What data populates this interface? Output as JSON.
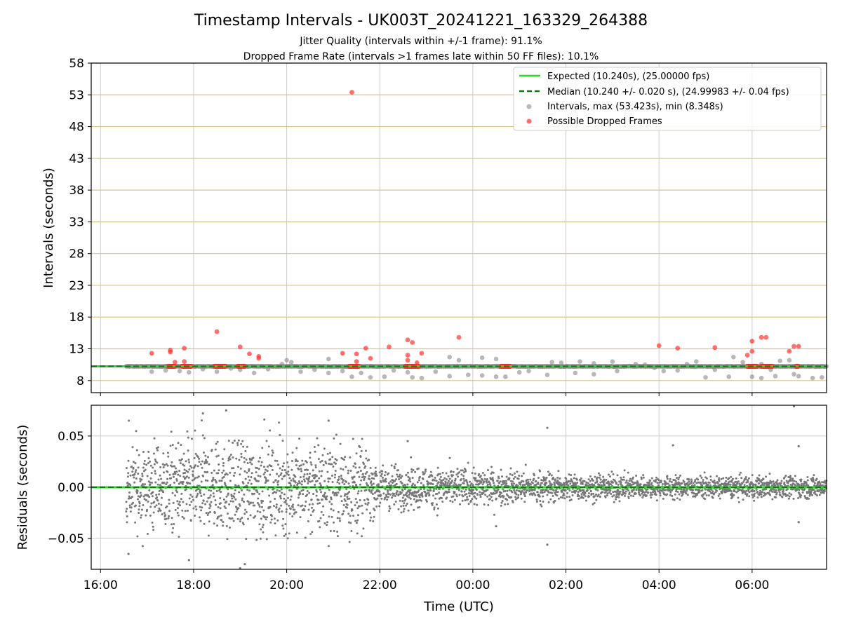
{
  "chart_data": [
    {
      "type": "scatter",
      "title": "Timestamp Intervals - UK003T_20241221_163329_264388",
      "subtitle_1": "Jitter Quality (intervals within +/-1 frame): 91.1%",
      "subtitle_2": "Dropped Frame Rate (intervals >1 frames late within 50 FF files): 10.1%",
      "ylabel": "Intervals (seconds)",
      "ylim": [
        6.1,
        58
      ],
      "yticks": [
        "8",
        "13",
        "18",
        "23",
        "28",
        "33",
        "38",
        "43",
        "48",
        "53",
        "58"
      ],
      "xlim_hours": [
        15.8,
        31.6
      ],
      "grid": true,
      "legend_position": "top-right",
      "legend": [
        "Expected (10.240s), (25.00000 fps)",
        "Median (10.240 +/- 0.020 s), (24.99983 +/- 0.04 fps)",
        "Intervals, max (53.423s), min (8.348s)",
        "Possible Dropped Frames"
      ],
      "series": [
        {
          "name": "Expected (10.240s), (25.00000 fps)",
          "kind": "hline",
          "y": 10.24,
          "color": "#22dd22"
        },
        {
          "name": "Median (10.240 +/- 0.020 s), (24.99983 +/- 0.04 fps)",
          "kind": "hline-dashed",
          "y": 10.24,
          "color": "#117711"
        },
        {
          "name": "Intervals, max (53.423s), min (8.348s)",
          "kind": "scatter",
          "color": "#888888",
          "points": [
            [
              17.1,
              9.4
            ],
            [
              17.4,
              9.6
            ],
            [
              17.7,
              9.5
            ],
            [
              17.9,
              9.3
            ],
            [
              18.2,
              9.8
            ],
            [
              18.5,
              9.4
            ],
            [
              18.8,
              9.9
            ],
            [
              19.0,
              9.7
            ],
            [
              19.3,
              9.2
            ],
            [
              19.6,
              9.8
            ],
            [
              19.9,
              10.6
            ],
            [
              20.0,
              11.2
            ],
            [
              20.1,
              10.9
            ],
            [
              20.3,
              9.4
            ],
            [
              20.6,
              9.7
            ],
            [
              20.9,
              11.4
            ],
            [
              20.9,
              9.2
            ],
            [
              21.2,
              9.5
            ],
            [
              21.4,
              8.6
            ],
            [
              21.6,
              9.2
            ],
            [
              21.8,
              8.5
            ],
            [
              22.1,
              8.6
            ],
            [
              22.3,
              9.6
            ],
            [
              22.6,
              9.3
            ],
            [
              22.7,
              8.5
            ],
            [
              22.9,
              8.4
            ],
            [
              23.2,
              9.4
            ],
            [
              23.5,
              11.7
            ],
            [
              23.5,
              8.7
            ],
            [
              23.7,
              11.2
            ],
            [
              23.9,
              8.9
            ],
            [
              24.2,
              11.6
            ],
            [
              24.2,
              8.8
            ],
            [
              24.5,
              11.4
            ],
            [
              24.5,
              8.6
            ],
            [
              24.7,
              8.6
            ],
            [
              25.0,
              9.3
            ],
            [
              25.2,
              9.5
            ],
            [
              25.6,
              8.9
            ],
            [
              25.7,
              10.9
            ],
            [
              25.9,
              10.8
            ],
            [
              26.2,
              9.2
            ],
            [
              26.3,
              11.0
            ],
            [
              26.6,
              10.7
            ],
            [
              26.6,
              9.0
            ],
            [
              27.0,
              11.0
            ],
            [
              27.1,
              9.5
            ],
            [
              27.5,
              10.6
            ],
            [
              27.7,
              10.5
            ],
            [
              27.9,
              10.0
            ],
            [
              28.1,
              9.5
            ],
            [
              28.4,
              9.6
            ],
            [
              28.6,
              10.6
            ],
            [
              28.8,
              11.0
            ],
            [
              29.0,
              8.5
            ],
            [
              29.2,
              9.7
            ],
            [
              29.5,
              8.6
            ],
            [
              29.6,
              11.7
            ],
            [
              29.8,
              10.9
            ],
            [
              30.0,
              8.6
            ],
            [
              30.2,
              10.6
            ],
            [
              30.4,
              9.7
            ],
            [
              30.6,
              11.1
            ],
            [
              30.8,
              11.2
            ],
            [
              30.9,
              9.0
            ],
            [
              31.0,
              8.7
            ],
            [
              31.3,
              8.4
            ],
            [
              31.5,
              8.5
            ],
            [
              30.2,
              8.4
            ],
            [
              30.5,
              8.7
            ]
          ]
        },
        {
          "name": "Possible Dropped Frames",
          "kind": "scatter",
          "color": "#ff3333",
          "points": [
            [
              17.1,
              12.3
            ],
            [
              17.5,
              12.8
            ],
            [
              17.5,
              12.5
            ],
            [
              17.8,
              13.1
            ],
            [
              17.8,
              11.0
            ],
            [
              17.6,
              10.9
            ],
            [
              18.5,
              15.7
            ],
            [
              19.0,
              13.3
            ],
            [
              19.2,
              12.2
            ],
            [
              19.4,
              11.8
            ],
            [
              19.4,
              11.5
            ],
            [
              21.4,
              53.4
            ],
            [
              21.2,
              12.3
            ],
            [
              21.5,
              12.2
            ],
            [
              21.7,
              13.1
            ],
            [
              21.8,
              11.5
            ],
            [
              22.2,
              13.3
            ],
            [
              22.6,
              14.4
            ],
            [
              22.6,
              12.0
            ],
            [
              22.7,
              14.0
            ],
            [
              22.6,
              11.2
            ],
            [
              22.8,
              10.8
            ],
            [
              22.9,
              12.3
            ],
            [
              23.7,
              14.8
            ],
            [
              28.0,
              13.5
            ],
            [
              28.4,
              13.1
            ],
            [
              29.2,
              13.2
            ],
            [
              30.0,
              14.2
            ],
            [
              29.9,
              12.0
            ],
            [
              30.0,
              12.6
            ],
            [
              30.2,
              14.8
            ],
            [
              30.3,
              14.8
            ],
            [
              30.8,
              12.6
            ],
            [
              30.9,
              13.4
            ],
            [
              31.0,
              13.4
            ],
            [
              21.5,
              11.0
            ]
          ]
        }
      ]
    },
    {
      "type": "scatter",
      "ylabel": "Residuals (seconds)",
      "xlabel": "Time (UTC)",
      "ylim": [
        -0.08,
        0.08
      ],
      "yticks": [
        "−0.05",
        "0.00",
        "0.05"
      ],
      "xticks": [
        "16:00",
        "18:00",
        "20:00",
        "22:00",
        "00:00",
        "02:00",
        "04:00",
        "06:00"
      ],
      "xlim_hours": [
        15.8,
        31.6
      ],
      "data_start_hour": 16.55,
      "grid": true,
      "series": [
        {
          "name": "",
          "kind": "hline",
          "y": 0.0,
          "color": "#22dd22"
        },
        {
          "name": "",
          "kind": "hline-dashed",
          "y": 0.0,
          "color": "#117711"
        },
        {
          "name": "",
          "kind": "scatter-envelope",
          "color": "#777777",
          "envelope": [
            [
              16.55,
              0.03
            ],
            [
              18.0,
              0.03
            ],
            [
              20.0,
              0.03
            ],
            [
              21.5,
              0.03
            ],
            [
              22.0,
              0.014
            ],
            [
              24.0,
              0.012
            ],
            [
              26.0,
              0.009
            ],
            [
              28.0,
              0.007
            ],
            [
              31.6,
              0.007
            ]
          ],
          "outliers": [
            [
              18.2,
              0.072
            ],
            [
              18.7,
              0.075
            ],
            [
              19.0,
              -0.079
            ],
            [
              19.1,
              -0.075
            ],
            [
              20.9,
              0.065
            ],
            [
              25.6,
              0.058
            ],
            [
              25.6,
              -0.056
            ],
            [
              28.3,
              0.041
            ],
            [
              30.9,
              0.079
            ],
            [
              16.6,
              -0.065
            ],
            [
              17.9,
              -0.071
            ],
            [
              22.6,
              0.045
            ],
            [
              24.5,
              -0.038
            ],
            [
              31.0,
              0.04
            ],
            [
              31.0,
              -0.034
            ]
          ]
        }
      ]
    }
  ]
}
